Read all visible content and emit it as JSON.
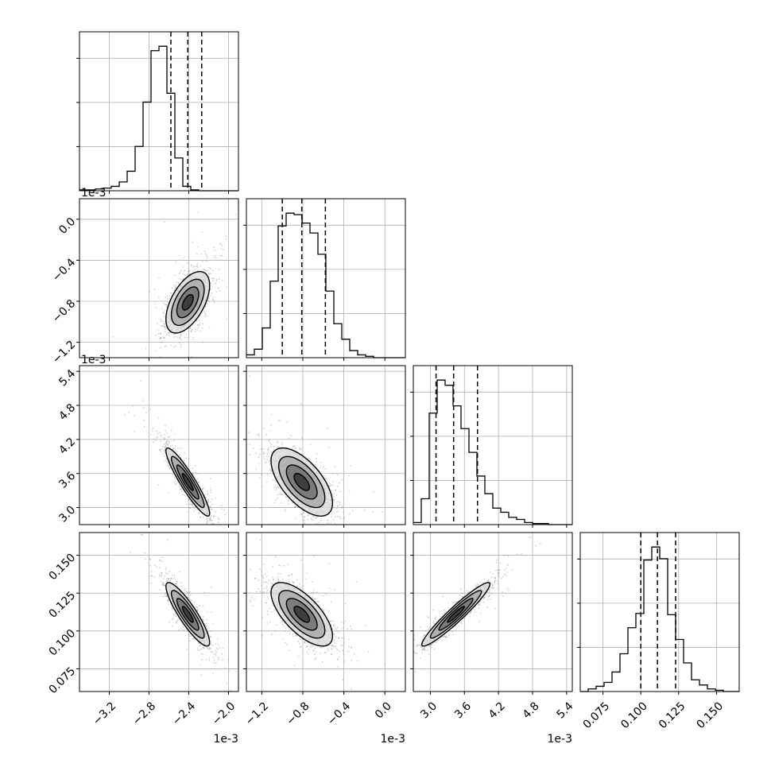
{
  "chart_data": {
    "type": "corner",
    "parameters": [
      {
        "id": "p1",
        "scale_label": "1e-3",
        "range": [
          -3.5,
          -1.9
        ],
        "ticks": [
          -3.2,
          -2.8,
          -2.4,
          -2.0
        ],
        "tick_labels": [
          "−3.2",
          "−2.8",
          "−2.4",
          "−2.0"
        ],
        "quantiles": [
          -2.58,
          -2.41,
          -2.27
        ]
      },
      {
        "id": "p2",
        "scale_label": "1e-3",
        "range": [
          -1.35,
          0.2
        ],
        "ticks": [
          -1.2,
          -0.8,
          -0.4,
          0.0
        ],
        "tick_labels": [
          "−1.2",
          "−0.8",
          "−0.4",
          "0.0"
        ],
        "quantiles": [
          -1.0,
          -0.81,
          -0.58
        ]
      },
      {
        "id": "p3",
        "scale_label": "1e-3",
        "range": [
          2.7,
          5.5
        ],
        "ticks": [
          3.0,
          3.6,
          4.2,
          4.8,
          5.4
        ],
        "tick_labels": [
          "3.0",
          "3.6",
          "4.2",
          "4.8",
          "5.4"
        ],
        "quantiles": [
          3.1,
          3.41,
          3.83
        ]
      },
      {
        "id": "p4",
        "scale_label": "",
        "range": [
          0.06,
          0.165
        ],
        "ticks": [
          0.075,
          0.1,
          0.125,
          0.15
        ],
        "tick_labels": [
          "0.075",
          "0.100",
          "0.125",
          "0.150"
        ],
        "quantiles": [
          0.1,
          0.111,
          0.123
        ]
      }
    ],
    "histograms": [
      {
        "param": "p1",
        "bin_start": -3.5,
        "bin_width": 0.08,
        "counts": [
          1,
          1,
          2,
          3,
          5,
          10,
          22,
          50,
          100,
          158,
          163,
          110,
          37,
          5,
          1,
          0,
          0,
          0,
          0,
          0
        ]
      },
      {
        "param": "p2",
        "bin_start": -1.35,
        "bin_width": 0.0775,
        "counts": [
          2,
          6,
          21,
          54,
          93,
          102,
          101,
          95,
          88,
          73,
          47,
          24,
          13,
          5,
          2,
          1,
          0,
          0,
          0,
          0
        ]
      },
      {
        "param": "p3",
        "bin_start": 2.7,
        "bin_width": 0.14,
        "counts": [
          2,
          25,
          108,
          140,
          135,
          115,
          93,
          70,
          47,
          30,
          16,
          12,
          7,
          5,
          2,
          1,
          1,
          0,
          0,
          0
        ]
      },
      {
        "param": "p4",
        "bin_start": 0.06,
        "bin_width": 0.00525,
        "counts": [
          0,
          2,
          4,
          7,
          15,
          29,
          49,
          60,
          101,
          111,
          102,
          59,
          40,
          22,
          9,
          5,
          2,
          1,
          0,
          0
        ]
      }
    ],
    "pairs": [
      {
        "x": "p1",
        "y": "p2",
        "center": [
          -2.41,
          -0.81
        ],
        "sd": [
          0.11,
          0.15
        ],
        "corr": 0.55
      },
      {
        "x": "p1",
        "y": "p3",
        "center": [
          -2.41,
          3.45
        ],
        "sd": [
          0.11,
          0.3
        ],
        "corr": -0.92
      },
      {
        "x": "p2",
        "y": "p3",
        "center": [
          -0.81,
          3.45
        ],
        "sd": [
          0.15,
          0.3
        ],
        "corr": -0.62
      },
      {
        "x": "p1",
        "y": "p4",
        "center": [
          -2.41,
          0.111
        ],
        "sd": [
          0.11,
          0.0105
        ],
        "corr": -0.88
      },
      {
        "x": "p2",
        "y": "p4",
        "center": [
          -0.81,
          0.111
        ],
        "sd": [
          0.15,
          0.0105
        ],
        "corr": -0.68
      },
      {
        "x": "p3",
        "y": "p4",
        "center": [
          3.45,
          0.111
        ],
        "sd": [
          0.3,
          0.0105
        ],
        "corr": 0.95
      }
    ],
    "contour_levels_sigma": [
      0.5,
      1.0,
      1.5,
      2.0
    ],
    "grid": true
  }
}
